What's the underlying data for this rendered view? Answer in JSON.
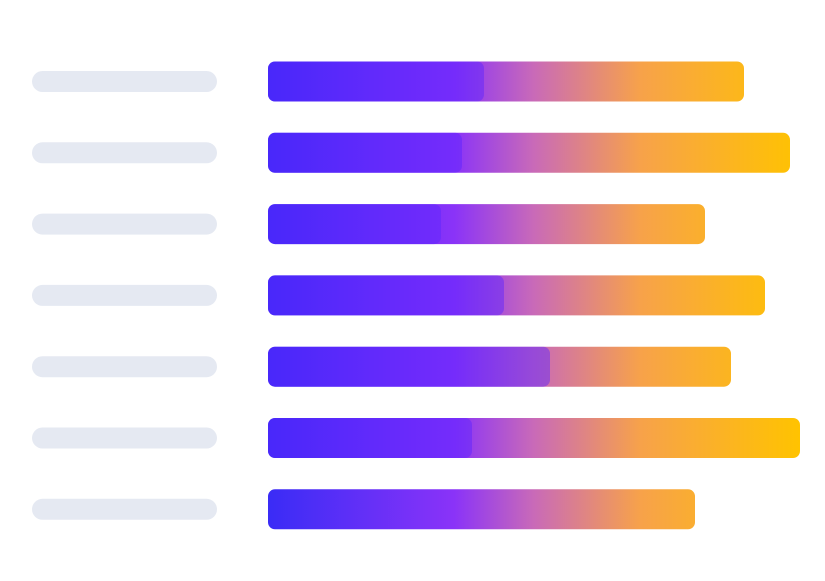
{
  "chart_data": {
    "type": "bar",
    "orientation": "horizontal",
    "stacked": true,
    "categories": [
      "",
      "",
      "",
      "",
      "",
      "",
      ""
    ],
    "series": [
      {
        "values": [
          216,
          194,
          173,
          236,
          282,
          204,
          0
        ]
      },
      {
        "values": [
          260,
          328,
          264,
          261,
          181,
          328,
          427
        ]
      }
    ],
    "xlim": [
      0,
      532
    ],
    "grid": false,
    "legend": "none",
    "colors": {
      "placeholder_label": "#e5e9f2",
      "gradient_start": "#3a2cf6",
      "gradient_mid": "#b347ee",
      "gradient_end": "#ffc300",
      "segment_overlay": "#5a24ff"
    }
  }
}
